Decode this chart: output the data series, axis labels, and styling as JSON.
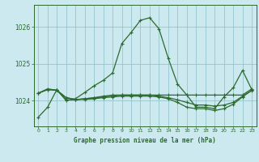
{
  "title": "Graphe pression niveau de la mer (hPa)",
  "background_color": "#cbe9ef",
  "grid_color": "#8bbfc8",
  "line_color": "#2d6a2d",
  "xlim": [
    -0.5,
    23.5
  ],
  "ylim": [
    1023.3,
    1026.6
  ],
  "yticks": [
    1024,
    1025,
    1026
  ],
  "xtick_labels": [
    "0",
    "1",
    "2",
    "3",
    "4",
    "5",
    "6",
    "7",
    "8",
    "9",
    "10",
    "11",
    "12",
    "13",
    "14",
    "15",
    "16",
    "17",
    "18",
    "19",
    "20",
    "21",
    "22",
    "23"
  ],
  "line1": [
    1023.55,
    1023.82,
    1024.3,
    1024.0,
    1024.05,
    1024.22,
    1024.4,
    1024.55,
    1024.75,
    1025.55,
    1025.85,
    1026.18,
    1026.25,
    1025.95,
    1025.15,
    1024.45,
    1024.15,
    1023.82,
    1023.82,
    1023.78,
    1024.1,
    1024.35,
    1024.82,
    1024.3
  ],
  "line2": [
    1024.2,
    1024.3,
    1024.28,
    1024.08,
    1024.03,
    1024.03,
    1024.05,
    1024.08,
    1024.1,
    1024.12,
    1024.12,
    1024.12,
    1024.12,
    1024.1,
    1024.05,
    1023.95,
    1023.82,
    1023.78,
    1023.78,
    1023.73,
    1023.78,
    1023.9,
    1024.1,
    1024.28
  ],
  "line3": [
    1024.2,
    1024.3,
    1024.28,
    1024.08,
    1024.03,
    1024.05,
    1024.07,
    1024.1,
    1024.12,
    1024.15,
    1024.15,
    1024.15,
    1024.15,
    1024.12,
    1024.08,
    1024.02,
    1023.95,
    1023.88,
    1023.88,
    1023.85,
    1023.88,
    1023.95,
    1024.12,
    1024.27
  ],
  "line4": [
    1024.2,
    1024.32,
    1024.28,
    1024.02,
    1024.02,
    1024.05,
    1024.08,
    1024.12,
    1024.15,
    1024.15,
    1024.15,
    1024.15,
    1024.15,
    1024.15,
    1024.15,
    1024.15,
    1024.15,
    1024.15,
    1024.15,
    1024.15,
    1024.15,
    1024.15,
    1024.15,
    1024.32
  ]
}
